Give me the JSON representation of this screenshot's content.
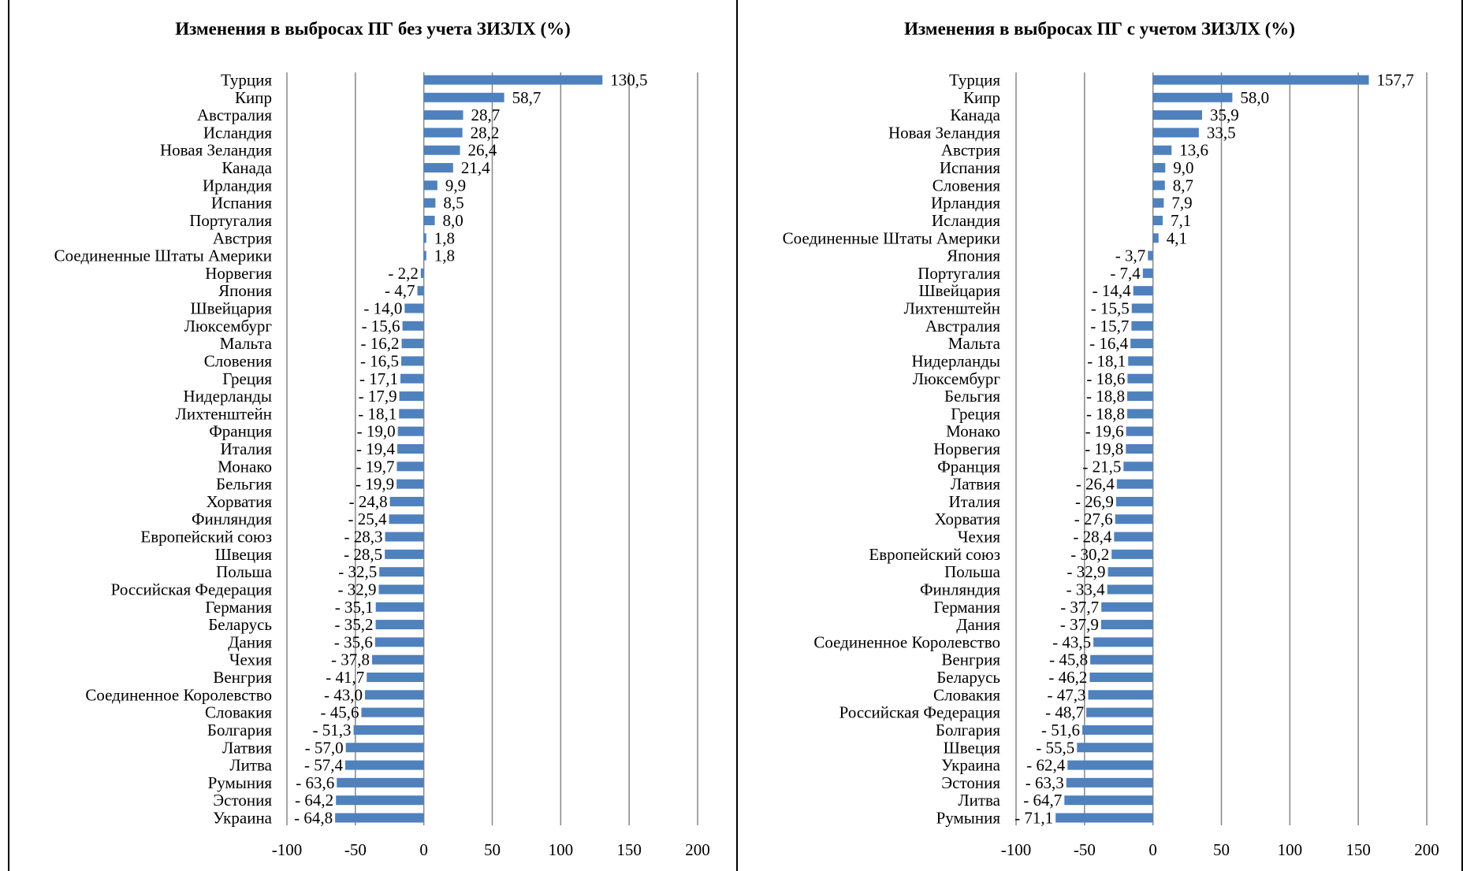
{
  "chart_data": [
    {
      "type": "bar",
      "orientation": "horizontal",
      "title": "Изменения в выбросах ПГ без учета ЗИЗЛХ (%)",
      "xlim": [
        -100,
        200
      ],
      "xticks": [
        -100,
        -50,
        0,
        50,
        100,
        150,
        200
      ],
      "tick_labels": [
        "-100",
        "-50",
        "0",
        "50",
        "100",
        "150",
        "200"
      ],
      "grid": "vertical",
      "bar_color": "#4f81bd",
      "categories": [
        "Турция",
        "Кипр",
        "Австралия",
        "Исландия",
        "Новая Зеландия",
        "Канада",
        "Ирландия",
        "Испания",
        "Португалия",
        "Австрия",
        "Соединенные Штаты Америки",
        "Норвегия",
        "Япония",
        "Швейцария",
        "Люксембург",
        "Мальта",
        "Словения",
        "Греция",
        "Нидерланды",
        "Лихтенштейн",
        "Франция",
        "Италия",
        "Монако",
        "Бельгия",
        "Хорватия",
        "Финляндия",
        "Европейский союз",
        "Швеция",
        "Польша",
        "Российская Федерация",
        "Германия",
        "Беларусь",
        "Дания",
        "Чехия",
        "Венгрия",
        "Соединенное Королевство",
        "Словакия",
        "Болгария",
        "Латвия",
        "Литва",
        "Румыния",
        "Эстония",
        "Украина"
      ],
      "values": [
        130.5,
        58.7,
        28.7,
        28.2,
        26.4,
        21.4,
        9.9,
        8.5,
        8.0,
        1.8,
        1.8,
        -2.2,
        -4.7,
        -14.0,
        -15.6,
        -16.2,
        -16.5,
        -17.1,
        -17.9,
        -18.1,
        -19.0,
        -19.4,
        -19.7,
        -19.9,
        -24.8,
        -25.4,
        -28.3,
        -28.5,
        -32.5,
        -32.9,
        -35.1,
        -35.2,
        -35.6,
        -37.8,
        -41.7,
        -43.0,
        -45.6,
        -51.3,
        -57.0,
        -57.4,
        -63.6,
        -64.2,
        -64.8
      ],
      "value_labels": [
        "130,5",
        "58,7",
        "28,7",
        "28,2",
        "26,4",
        "21,4",
        "9,9",
        "8,5",
        "8,0",
        "1,8",
        "1,8",
        "- 2,2",
        "- 4,7",
        "- 14,0",
        "- 15,6",
        "- 16,2",
        "- 16,5",
        "- 17,1",
        "- 17,9",
        "- 18,1",
        "- 19,0",
        "- 19,4",
        "- 19,7",
        "- 19,9",
        "- 24,8",
        "- 25,4",
        "- 28,3",
        "- 28,5",
        "- 32,5",
        "- 32,9",
        "- 35,1",
        "- 35,2",
        "- 35,6",
        "- 37,8",
        "- 41,7",
        "- 43,0",
        "- 45,6",
        "- 51,3",
        "- 57,0",
        "- 57,4",
        "- 63,6",
        "- 64,2",
        "- 64,8"
      ]
    },
    {
      "type": "bar",
      "orientation": "horizontal",
      "title": "Изменения в выбросах ПГ с учетом ЗИЗЛХ (%)",
      "xlim": [
        -100,
        200
      ],
      "xticks": [
        -100,
        -50,
        0,
        50,
        100,
        150,
        200
      ],
      "tick_labels": [
        "-100",
        "-50",
        "0",
        "50",
        "100",
        "150",
        "200"
      ],
      "grid": "vertical",
      "bar_color": "#4f81bd",
      "categories": [
        "Турция",
        "Кипр",
        "Канада",
        "Новая Зеландия",
        "Австрия",
        "Испания",
        "Словения",
        "Ирландия",
        "Исландия",
        "Соединенные Штаты Америки",
        "Япония",
        "Португалия",
        "Швейцария",
        "Лихтенштейн",
        "Австралия",
        "Мальта",
        "Нидерланды",
        "Люксембург",
        "Бельгия",
        "Греция",
        "Монако",
        "Норвегия",
        "Франция",
        "Латвия",
        "Италия",
        "Хорватия",
        "Чехия",
        "Европейский союз",
        "Польша",
        "Финляндия",
        "Германия",
        "Дания",
        "Соединенное Королевство",
        "Венгрия",
        "Беларусь",
        "Словакия",
        "Российская Федерация",
        "Болгария",
        "Швеция",
        "Украина",
        "Эстония",
        "Литва",
        "Румыния"
      ],
      "values": [
        157.7,
        58.0,
        35.9,
        33.5,
        13.6,
        9.0,
        8.7,
        7.9,
        7.1,
        4.1,
        -3.7,
        -7.4,
        -14.4,
        -15.5,
        -15.7,
        -16.4,
        -18.1,
        -18.6,
        -18.8,
        -18.8,
        -19.6,
        -19.8,
        -21.5,
        -26.4,
        -26.9,
        -27.6,
        -28.4,
        -30.2,
        -32.9,
        -33.4,
        -37.7,
        -37.9,
        -43.5,
        -45.8,
        -46.2,
        -47.3,
        -48.7,
        -51.6,
        -55.5,
        -62.4,
        -63.3,
        -64.7,
        -71.1
      ],
      "value_labels": [
        "157,7",
        "58,0",
        "35,9",
        "33,5",
        "13,6",
        "9,0",
        "8,7",
        "7,9",
        "7,1",
        "4,1",
        "- 3,7",
        "- 7,4",
        "- 14,4",
        "- 15,5",
        "- 15,7",
        "- 16,4",
        "- 18,1",
        "- 18,6",
        "- 18,8",
        "- 18,8",
        "- 19,6",
        "- 19,8",
        "- 21,5",
        "- 26,4",
        "- 26,9",
        "- 27,6",
        "- 28,4",
        "- 30,2",
        "- 32,9",
        "- 33,4",
        "- 37,7",
        "- 37,9",
        "- 43,5",
        "- 45,8",
        "- 46,2",
        "- 47,3",
        "- 48,7",
        "- 51,6",
        "- 55,5",
        "- 62,4",
        "- 63,3",
        "- 64,7",
        "- 71,1"
      ]
    }
  ]
}
